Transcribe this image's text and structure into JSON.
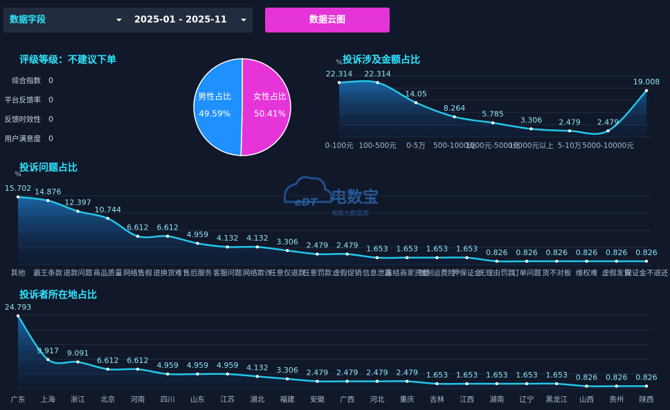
{
  "toolbar": {
    "field": "数据字段",
    "date_range": "2025-01 - 2025-11",
    "button": "数据云图"
  },
  "rating": {
    "title": "评级等级：不建议下单",
    "rows": [
      {
        "label": "综合指数",
        "value": 0
      },
      {
        "label": "平台反馈率",
        "value": 0
      },
      {
        "label": "反馈时效性",
        "value": 0
      },
      {
        "label": "用户满意度",
        "value": 0
      }
    ]
  },
  "watermark": {
    "logo": "eDT",
    "brand": "电数宝",
    "sub": "电商大数据库"
  },
  "chart_data": [
    {
      "type": "pie",
      "categories": [
        "男性占比",
        "女性占比"
      ],
      "values": [
        49.59,
        50.41
      ],
      "value_labels": [
        "49.59%",
        "50.41%"
      ],
      "colors": [
        "#1e90ff",
        "#e535d8"
      ]
    },
    {
      "type": "line",
      "title": "投诉涉及金额占比",
      "unit": "%",
      "color": "#22c8ea",
      "categories": [
        "0-100元",
        "100-500元",
        "0-5万",
        "500-1000元",
        "1000元-5000元",
        "10000元以上",
        "5-10万",
        "5000-10000元",
        null
      ],
      "values": [
        22.314,
        22.314,
        14.05,
        8.264,
        5.785,
        3.306,
        2.479,
        2.479,
        19.008
      ],
      "ylim": [
        0,
        25
      ],
      "yticks": [
        0,
        5,
        10,
        15,
        20,
        25
      ],
      "grid": true
    },
    {
      "type": "line",
      "title": "投诉问题占比",
      "unit": "%",
      "color": "#22c8ea",
      "categories": [
        "其他",
        "霸王条款",
        "退款问题",
        "商品质量",
        "网络售假",
        "退换货难",
        "售后服务",
        "客服问题",
        "网络欺诈",
        "任意仅退款",
        "任意罚款",
        "虚假促销",
        "信息泄露",
        "冻结商家资金",
        "强制运费险",
        "押保证金",
        "无理由罚款",
        "订单问题",
        "货不对板",
        "维权难",
        "虚假发货",
        "保证金不退还"
      ],
      "values": [
        15.702,
        14.876,
        12.397,
        10.744,
        6.612,
        6.612,
        4.959,
        4.132,
        4.132,
        3.306,
        2.479,
        2.479,
        1.653,
        1.653,
        1.653,
        1.653,
        0.826,
        0.826,
        0.826,
        0.826,
        0.826,
        0.826
      ],
      "ylim": [
        0,
        16
      ],
      "yticks": [
        0,
        4,
        8,
        12,
        16
      ],
      "grid": true
    },
    {
      "type": "line",
      "title": "投诉者所在地占比",
      "color": "#22c8ea",
      "categories": [
        "广东",
        "上海",
        "浙江",
        "北京",
        "河南",
        "四川",
        "山东",
        "江苏",
        "湖北",
        "福建",
        "安徽",
        "广西",
        "河北",
        "重庆",
        "吉林",
        "江西",
        "湖南",
        "辽宁",
        "黑龙江",
        "山西",
        "贵州",
        "陕西"
      ],
      "values": [
        24.793,
        9.917,
        9.091,
        6.612,
        6.612,
        4.959,
        4.959,
        4.959,
        4.132,
        3.306,
        2.479,
        2.479,
        2.479,
        2.479,
        1.653,
        1.653,
        1.653,
        1.653,
        1.653,
        0.826,
        0.826,
        0.826
      ],
      "ylim": [
        0,
        25
      ],
      "yticks": [
        0,
        5,
        10,
        15,
        20,
        25
      ],
      "grid": true
    }
  ]
}
